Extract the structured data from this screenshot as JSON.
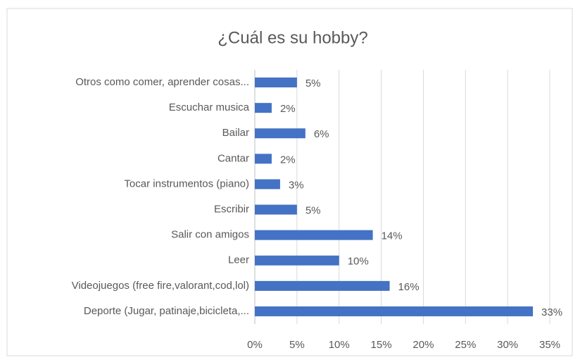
{
  "chart_data": {
    "type": "bar",
    "orientation": "horizontal",
    "title": "¿Cuál es su hobby?",
    "categories": [
      "Otros como comer, aprender cosas...",
      "Escuchar musica",
      "Bailar",
      "Cantar",
      "Tocar instrumentos (piano)",
      "Escribir",
      "Salir con amigos",
      "Leer",
      "Videojuegos (free fire,valorant,cod,lol)",
      "Deporte (Jugar, patinaje,bicicleta,..."
    ],
    "values": [
      5,
      2,
      6,
      2,
      3,
      5,
      14,
      10,
      16,
      33
    ],
    "value_labels": [
      "5%",
      "2%",
      "6%",
      "2%",
      "3%",
      "5%",
      "14%",
      "10%",
      "16%",
      "33%"
    ],
    "color": "#4472c4",
    "xlim": [
      0,
      35
    ],
    "xticks": [
      {
        "value": 0,
        "label": "0%"
      },
      {
        "value": 5,
        "label": "5%"
      },
      {
        "value": 10,
        "label": "10%"
      },
      {
        "value": 15,
        "label": "15%"
      },
      {
        "value": 20,
        "label": "20%"
      },
      {
        "value": 25,
        "label": "25%"
      },
      {
        "value": 30,
        "label": "30%"
      },
      {
        "value": 35,
        "label": "35%"
      }
    ],
    "grid": true
  }
}
